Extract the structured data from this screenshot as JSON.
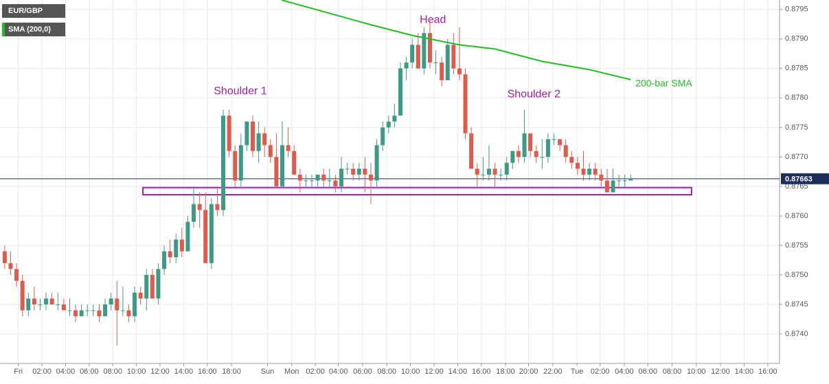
{
  "chart_data": {
    "type": "candlestick",
    "legend": [
      "EUR/GBP",
      "SMA (200,0)"
    ],
    "up_color": "#3c9a85",
    "down_color": "#de5b4b",
    "grid": true,
    "xlim": [
      -0.8,
      131.2
    ],
    "ylim": [
      0.8735,
      0.87966
    ],
    "xticks": [
      {
        "value": 2.3,
        "label": "Fri"
      },
      {
        "value": 6.3,
        "label": "02:00"
      },
      {
        "value": 10.3,
        "label": "04:00"
      },
      {
        "value": 14.3,
        "label": "06:00"
      },
      {
        "value": 18.3,
        "label": "08:00"
      },
      {
        "value": 22.3,
        "label": "10:00"
      },
      {
        "value": 26.3,
        "label": "12:00"
      },
      {
        "value": 30.3,
        "label": "14:00"
      },
      {
        "value": 34.3,
        "label": "16:00"
      },
      {
        "value": 38.4,
        "label": "18:00"
      },
      {
        "value": 44.5,
        "label": "Sun"
      },
      {
        "value": 48.6,
        "label": "Mon"
      },
      {
        "value": 52.6,
        "label": "02:00"
      },
      {
        "value": 56.5,
        "label": "04:00"
      },
      {
        "value": 60.6,
        "label": "06:00"
      },
      {
        "value": 64.7,
        "label": "08:00"
      },
      {
        "value": 68.7,
        "label": "10:00"
      },
      {
        "value": 72.7,
        "label": "12:00"
      },
      {
        "value": 76.7,
        "label": "14:00"
      },
      {
        "value": 80.7,
        "label": "16:00"
      },
      {
        "value": 84.8,
        "label": "18:00"
      },
      {
        "value": 88.7,
        "label": "20:00"
      },
      {
        "value": 92.8,
        "label": "22:00"
      },
      {
        "value": 96.9,
        "label": "Tue"
      },
      {
        "value": 100.8,
        "label": "02:00"
      },
      {
        "value": 104.9,
        "label": "04:00"
      },
      {
        "value": 108.9,
        "label": "06:00"
      },
      {
        "value": 113,
        "label": "08:00"
      },
      {
        "value": 117.1,
        "label": "10:00"
      },
      {
        "value": 121.2,
        "label": "12:00"
      },
      {
        "value": 125.2,
        "label": "14:00"
      },
      {
        "value": 129.2,
        "label": "16:00"
      }
    ],
    "yticks": [
      {
        "value": 0.874,
        "label": "0.8740"
      },
      0.8745,
      {
        "value": 0.875,
        "label": "0.8750"
      },
      0.8755,
      {
        "value": 0.876,
        "label": "0.8760"
      },
      0.8765,
      {
        "value": 0.877,
        "label": "0.8770"
      },
      0.8775,
      {
        "value": 0.878,
        "label": "0.8780"
      },
      0.8785,
      {
        "value": 0.879,
        "label": "0.8790"
      },
      0.8795
    ],
    "ohlc": [
      [
        0.8754,
        0.8755,
        0.8751,
        0.8752
      ],
      [
        0.8752,
        0.8754,
        0.875,
        0.8751
      ],
      [
        0.8751,
        0.8752,
        0.8748,
        0.8749
      ],
      [
        0.8749,
        0.875,
        0.8743,
        0.8744
      ],
      [
        0.8744,
        0.8747,
        0.8743,
        0.8746
      ],
      [
        0.8746,
        0.8748,
        0.8744,
        0.8745
      ],
      [
        0.8745,
        0.8746,
        0.8744,
        0.8745
      ],
      [
        0.8745,
        0.8747,
        0.8744,
        0.8746
      ],
      [
        0.8746,
        0.8747,
        0.8745,
        0.8745
      ],
      [
        0.8745,
        0.8747,
        0.8744,
        0.8745
      ],
      [
        0.8745,
        0.8746,
        0.8744,
        0.8744
      ],
      [
        0.8744,
        0.8746,
        0.8743,
        0.8744
      ],
      [
        0.8744,
        0.8745,
        0.8742,
        0.8743
      ],
      [
        0.8743,
        0.8745,
        0.8743,
        0.8744
      ],
      [
        0.8744,
        0.8745,
        0.8743,
        0.8744
      ],
      [
        0.8744,
        0.8745,
        0.8743,
        0.8744
      ],
      [
        0.8744,
        0.8745,
        0.8742,
        0.8743
      ],
      [
        0.8743,
        0.8746,
        0.8743,
        0.8745
      ],
      [
        0.8745,
        0.8747,
        0.8744,
        0.8746
      ],
      [
        0.8746,
        0.8749,
        0.8738,
        0.8744
      ],
      [
        0.8744,
        0.8748,
        0.8743,
        0.8744
      ],
      [
        0.8744,
        0.8745,
        0.8742,
        0.8743
      ],
      [
        0.8743,
        0.8748,
        0.8742,
        0.8747
      ],
      [
        0.8747,
        0.8748,
        0.8745,
        0.8746
      ],
      [
        0.8746,
        0.8751,
        0.8744,
        0.875
      ],
      [
        0.875,
        0.8751,
        0.8746,
        0.8746
      ],
      [
        0.8746,
        0.8752,
        0.8745,
        0.8751
      ],
      [
        0.8751,
        0.8755,
        0.875,
        0.8754
      ],
      [
        0.8754,
        0.8756,
        0.8752,
        0.8753
      ],
      [
        0.8753,
        0.8757,
        0.8752,
        0.8756
      ],
      [
        0.8756,
        0.8758,
        0.8753,
        0.8754
      ],
      [
        0.8754,
        0.876,
        0.8754,
        0.8759
      ],
      [
        0.8759,
        0.8765,
        0.8758,
        0.8762
      ],
      [
        0.8762,
        0.8764,
        0.8758,
        0.8761
      ],
      [
        0.8761,
        0.8764,
        0.8752,
        0.8752
      ],
      [
        0.8752,
        0.8763,
        0.8751,
        0.8762
      ],
      [
        0.8762,
        0.8765,
        0.876,
        0.8761
      ],
      [
        0.8761,
        0.8778,
        0.876,
        0.8777
      ],
      [
        0.8777,
        0.8778,
        0.877,
        0.8771
      ],
      [
        0.8771,
        0.8772,
        0.8765,
        0.8766
      ],
      [
        0.8766,
        0.8774,
        0.8765,
        0.8772
      ],
      [
        0.8772,
        0.8776,
        0.8771,
        0.8776
      ],
      [
        0.8776,
        0.8777,
        0.877,
        0.8771
      ],
      [
        0.8771,
        0.8776,
        0.8769,
        0.8774
      ],
      [
        0.8774,
        0.8775,
        0.877,
        0.8772
      ],
      [
        0.8772,
        0.8773,
        0.8769,
        0.877
      ],
      [
        0.877,
        0.8774,
        0.8765,
        0.8765
      ],
      [
        0.8765,
        0.8776,
        0.8765,
        0.8772
      ],
      [
        0.8772,
        0.8775,
        0.877,
        0.8771
      ],
      [
        0.8771,
        0.8772,
        0.8767,
        0.8767
      ],
      [
        0.8767,
        0.8768,
        0.8764,
        0.8766
      ],
      [
        0.8766,
        0.8767,
        0.8765,
        0.8766
      ],
      [
        0.8766,
        0.8767,
        0.8765,
        0.8766
      ],
      [
        0.8766,
        0.8767,
        0.8765,
        0.8767
      ],
      [
        0.8767,
        0.8768,
        0.8765,
        0.8766
      ],
      [
        0.8766,
        0.8768,
        0.8765,
        0.8766
      ],
      [
        0.8766,
        0.8767,
        0.8764,
        0.8765
      ],
      [
        0.8765,
        0.877,
        0.8764,
        0.8768
      ],
      [
        0.8768,
        0.8769,
        0.8767,
        0.8768
      ],
      [
        0.8768,
        0.8769,
        0.8766,
        0.8767
      ],
      [
        0.8767,
        0.8769,
        0.8766,
        0.8768
      ],
      [
        0.8768,
        0.877,
        0.8764,
        0.8767
      ],
      [
        0.8767,
        0.8769,
        0.8762,
        0.8766
      ],
      [
        0.8766,
        0.8773,
        0.8765,
        0.8772
      ],
      [
        0.8772,
        0.8776,
        0.8771,
        0.8775
      ],
      [
        0.8775,
        0.8777,
        0.8774,
        0.8776
      ],
      [
        0.8776,
        0.8779,
        0.8775,
        0.8777
      ],
      [
        0.8777,
        0.8786,
        0.8777,
        0.8785
      ],
      [
        0.8785,
        0.8787,
        0.8783,
        0.8786
      ],
      [
        0.8786,
        0.879,
        0.8785,
        0.8789
      ],
      [
        0.8789,
        0.8791,
        0.8785,
        0.8785
      ],
      [
        0.8785,
        0.8792,
        0.8784,
        0.8791
      ],
      [
        0.8791,
        0.8793,
        0.8785,
        0.8786
      ],
      [
        0.8786,
        0.8788,
        0.8784,
        0.8786
      ],
      [
        0.8786,
        0.8787,
        0.8782,
        0.8783
      ],
      [
        0.8783,
        0.879,
        0.8783,
        0.8789
      ],
      [
        0.8789,
        0.8791,
        0.8784,
        0.8785
      ],
      [
        0.8785,
        0.8792,
        0.8783,
        0.8784
      ],
      [
        0.8784,
        0.8785,
        0.8773,
        0.8774
      ],
      [
        0.8774,
        0.8775,
        0.8768,
        0.8768
      ],
      [
        0.8768,
        0.8769,
        0.8765,
        0.8767
      ],
      [
        0.8767,
        0.877,
        0.8766,
        0.8767
      ],
      [
        0.8767,
        0.8772,
        0.8766,
        0.8768
      ],
      [
        0.8768,
        0.8769,
        0.8765,
        0.8767
      ],
      [
        0.8767,
        0.8768,
        0.8766,
        0.8767
      ],
      [
        0.8767,
        0.877,
        0.8766,
        0.8769
      ],
      [
        0.8769,
        0.8771,
        0.8768,
        0.8771
      ],
      [
        0.8771,
        0.8772,
        0.8769,
        0.877
      ],
      [
        0.877,
        0.8778,
        0.8769,
        0.8774
      ],
      [
        0.8774,
        0.8774,
        0.877,
        0.8771
      ],
      [
        0.8771,
        0.8772,
        0.8769,
        0.877
      ],
      [
        0.877,
        0.8773,
        0.8768,
        0.877
      ],
      [
        0.877,
        0.8774,
        0.8769,
        0.8773
      ],
      [
        0.8773,
        0.8774,
        0.8772,
        0.8773
      ],
      [
        0.8773,
        0.8773,
        0.8771,
        0.8772
      ],
      [
        0.8772,
        0.8773,
        0.8769,
        0.877
      ],
      [
        0.877,
        0.8771,
        0.8768,
        0.8769
      ],
      [
        0.8769,
        0.877,
        0.8767,
        0.8768
      ],
      [
        0.8768,
        0.8771,
        0.8766,
        0.8767
      ],
      [
        0.8767,
        0.8769,
        0.8766,
        0.8768
      ],
      [
        0.8768,
        0.8769,
        0.8766,
        0.8767
      ],
      [
        0.8767,
        0.8768,
        0.8765,
        0.8766
      ],
      [
        0.8766,
        0.8768,
        0.8764,
        0.8764
      ],
      [
        0.8764,
        0.8768,
        0.8764,
        0.8766
      ],
      [
        0.8766,
        0.8767,
        0.8765,
        0.8766
      ],
      [
        0.8766,
        0.8767,
        0.8765,
        0.8766
      ],
      [
        0.8766,
        0.8767,
        0.8766,
        0.87663
      ]
    ],
    "sma": {
      "color": "#1fbf1f",
      "x": [
        46.9,
        62,
        69,
        77,
        83,
        91,
        99,
        106
      ],
      "values": [
        0.87966,
        0.87924,
        0.87906,
        0.8789,
        0.87883,
        0.87862,
        0.87848,
        0.87831
      ]
    },
    "last_price": {
      "value": 0.87663,
      "label": "0.87663"
    },
    "zone": {
      "x": [
        23.4,
        116.3
      ],
      "y": [
        0.87636,
        0.87648
      ],
      "color": "#a020a0"
    },
    "annotations": [
      {
        "text": "Head",
        "x": 72.5,
        "y": 0.87932,
        "color": "#a020a0"
      },
      {
        "text": "Shoulder 1",
        "x": 39.9,
        "y": 0.87811,
        "color": "#a020a0"
      },
      {
        "text": "Shoulder 2",
        "x": 89.6,
        "y": 0.87806,
        "color": "#a020a0"
      },
      {
        "text": "200-bar SMA",
        "x": 111.6,
        "y": 0.87824,
        "color": "#1fbf1f"
      }
    ]
  }
}
